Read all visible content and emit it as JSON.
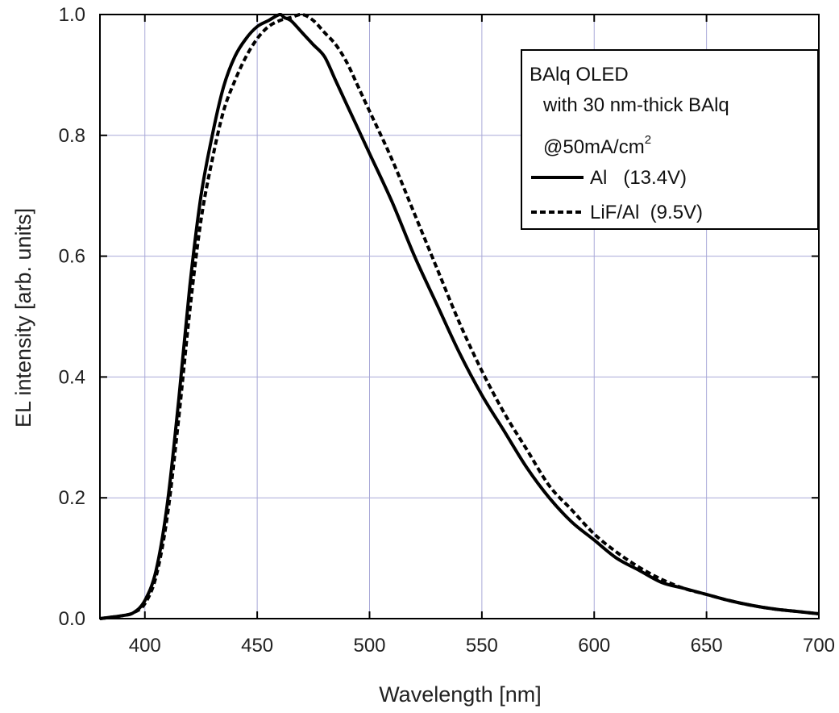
{
  "chart_data": {
    "type": "line",
    "title": "",
    "xlabel": "Wavelength [nm]",
    "ylabel": "EL intensity [arb. units]",
    "xlim": [
      380,
      700
    ],
    "ylim": [
      0,
      1
    ],
    "xticks": [
      400,
      450,
      500,
      550,
      600,
      650,
      700
    ],
    "yticks": [
      0,
      0.2,
      0.4,
      0.6,
      0.8,
      1.0
    ],
    "ytick_labels": [
      "0.0",
      "0.2",
      "0.4",
      "0.6",
      "0.8",
      "1.0"
    ],
    "grid": true,
    "legend_position": "top-right",
    "legend": {
      "title_lines": [
        "BAlq OLED",
        "with 30 nm-thick BAlq"
      ],
      "condition_main": "@50mA/cm",
      "condition_sup": "2"
    },
    "series": [
      {
        "name": "Al   (13.4V)",
        "style": "solid",
        "color": "#000000",
        "x": [
          380,
          390,
          395,
          400,
          405,
          410,
          415,
          420,
          425,
          430,
          435,
          440,
          445,
          450,
          455,
          460,
          462,
          465,
          470,
          475,
          480,
          485,
          490,
          495,
          500,
          510,
          520,
          530,
          540,
          550,
          560,
          570,
          580,
          590,
          600,
          610,
          620,
          630,
          640,
          650,
          660,
          670,
          680,
          690,
          700
        ],
        "y": [
          0.0,
          0.005,
          0.01,
          0.03,
          0.08,
          0.19,
          0.36,
          0.55,
          0.7,
          0.8,
          0.88,
          0.93,
          0.96,
          0.98,
          0.99,
          1.0,
          0.995,
          0.99,
          0.97,
          0.95,
          0.93,
          0.89,
          0.85,
          0.81,
          0.77,
          0.69,
          0.6,
          0.52,
          0.44,
          0.37,
          0.31,
          0.25,
          0.2,
          0.16,
          0.13,
          0.1,
          0.08,
          0.06,
          0.05,
          0.04,
          0.03,
          0.022,
          0.016,
          0.012,
          0.008
        ]
      },
      {
        "name": "LiF/Al  (9.5V)",
        "style": "dashed",
        "color": "#000000",
        "x": [
          380,
          390,
          395,
          400,
          405,
          410,
          415,
          420,
          425,
          430,
          435,
          440,
          445,
          450,
          455,
          460,
          465,
          470,
          475,
          480,
          485,
          490,
          495,
          500,
          510,
          520,
          530,
          540,
          550,
          560,
          570,
          580,
          590,
          600,
          610,
          620,
          630,
          640,
          650,
          660,
          670,
          680,
          690,
          700
        ],
        "y": [
          0.0,
          0.005,
          0.01,
          0.025,
          0.07,
          0.17,
          0.33,
          0.51,
          0.66,
          0.76,
          0.84,
          0.89,
          0.93,
          0.96,
          0.98,
          0.99,
          0.995,
          1.0,
          0.99,
          0.97,
          0.95,
          0.92,
          0.88,
          0.84,
          0.76,
          0.67,
          0.58,
          0.49,
          0.41,
          0.34,
          0.28,
          0.22,
          0.18,
          0.14,
          0.11,
          0.085,
          0.065,
          0.05,
          0.04,
          0.03,
          0.022,
          0.016,
          0.012,
          0.008
        ]
      }
    ]
  }
}
